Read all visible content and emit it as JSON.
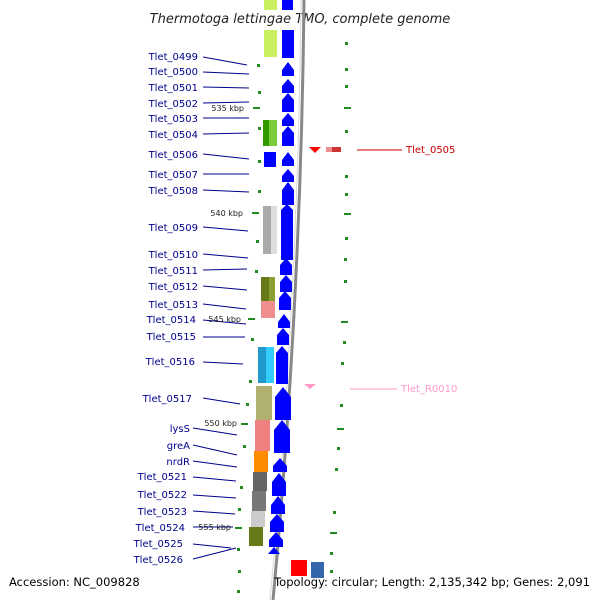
{
  "title": "Thermotoga lettingae TMO, complete genome",
  "footer": {
    "accession": "Accession: NC_009828",
    "topology": "Topology: circular; Length: 2,135,342 bp; Genes: 2,091"
  },
  "scale_labels": [
    "535 kbp",
    "540 kbp",
    "545 kbp",
    "550 kbp",
    "555 kbp"
  ],
  "left_labels": [
    "Tlet_0499",
    "Tlet_0500",
    "Tlet_0501",
    "Tlet_0502",
    "Tlet_0503",
    "Tlet_0504",
    "Tlet_0506",
    "Tlet_0507",
    "Tlet_0508",
    "Tlet_0509",
    "Tlet_0510",
    "Tlet_0511",
    "Tlet_0512",
    "Tlet_0513",
    "Tlet_0514",
    "Tlet_0515",
    "Tlet_0516",
    "Tlet_0517",
    "lysS",
    "greA",
    "nrdR",
    "Tlet_0521",
    "Tlet_0522",
    "Tlet_0523",
    "Tlet_0524",
    "Tlet_0525",
    "Tlet_0526"
  ],
  "right_labels": [
    {
      "text": "Tlet_0505",
      "color": "#cc0000"
    },
    {
      "text": "Tlet_R0010",
      "color": "#ff99cc"
    }
  ],
  "colors": {
    "cds": "#0000ff",
    "backbone": "#888888",
    "tick": "#228b22",
    "label_line": "#00008b",
    "rrna_marker": "#ff0000",
    "trna_marker": "#ff99cc"
  }
}
